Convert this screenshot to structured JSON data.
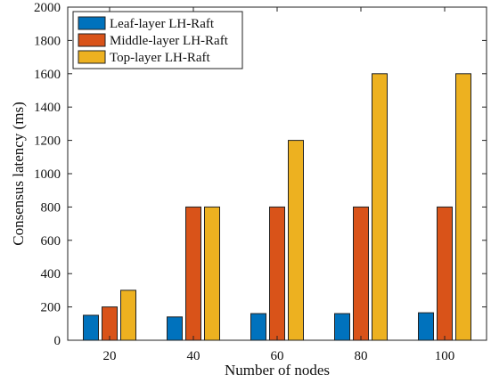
{
  "chart_data": {
    "type": "bar",
    "categories": [
      "20",
      "40",
      "60",
      "80",
      "100"
    ],
    "series": [
      {
        "name": "Leaf-layer LH-Raft",
        "color": "#0072BD",
        "values": [
          150,
          140,
          160,
          160,
          165
        ]
      },
      {
        "name": "Middle-layer LH-Raft",
        "color": "#D95319",
        "values": [
          200,
          800,
          800,
          800,
          800
        ]
      },
      {
        "name": "Top-layer LH-Raft",
        "color": "#EDB120",
        "values": [
          300,
          800,
          1200,
          1600,
          1600
        ]
      }
    ],
    "xlabel": "Number of nodes",
    "ylabel": "Consensus latency (ms)",
    "ylim": [
      0,
      2000
    ],
    "yticks": [
      0,
      200,
      400,
      600,
      800,
      1000,
      1200,
      1400,
      1600,
      1800,
      2000
    ],
    "grid": false,
    "legend_position": "top-left"
  }
}
